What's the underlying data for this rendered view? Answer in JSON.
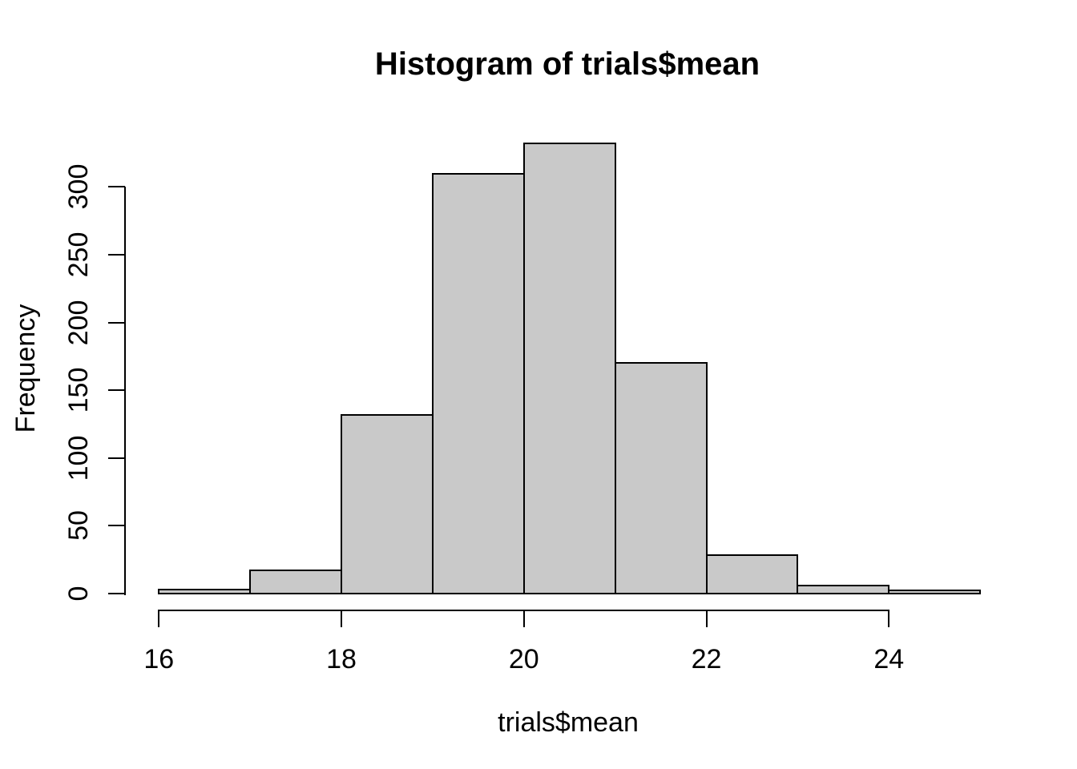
{
  "figure": {
    "background_color": "#FFFFFF",
    "text_color": "#000000",
    "bar_fill_color": "#C9C9C9",
    "bar_border_color": "#000000"
  },
  "chart_data": {
    "type": "bar",
    "subtype": "histogram",
    "title": "Histogram of trials$mean",
    "xlabel": "trials$mean",
    "ylabel": "Frequency",
    "bin_edges": [
      16,
      17,
      18,
      19,
      20,
      21,
      22,
      23,
      24,
      25
    ],
    "counts": [
      3,
      17,
      132,
      310,
      332,
      170,
      28,
      6,
      2
    ],
    "x_ticks": [
      16,
      18,
      20,
      22,
      24
    ],
    "y_ticks": [
      0,
      50,
      100,
      150,
      200,
      250,
      300
    ],
    "xlim": [
      16,
      25
    ],
    "ylim": [
      0,
      300
    ],
    "grid": false,
    "legend_position": "none",
    "bar_fill": "#C9C9C9",
    "bar_border": "#000000"
  }
}
